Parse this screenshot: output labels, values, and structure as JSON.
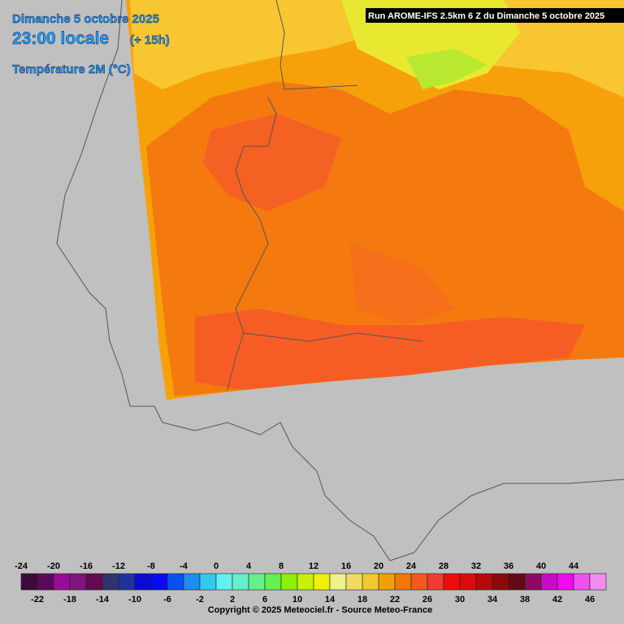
{
  "header": {
    "date": "Dimanche 5 octobre 2025",
    "time": "23:00 locale",
    "offset": "(+ 15h)",
    "parameter": "Température 2M (°C)",
    "run": "Run AROME-IFS 2.5km 6 Z du Dimanche 5 octobre 2025"
  },
  "legend": {
    "values": [
      -24,
      -22,
      -20,
      -18,
      -16,
      -14,
      -12,
      -10,
      -8,
      -6,
      -4,
      -2,
      0,
      2,
      4,
      6,
      8,
      10,
      12,
      14,
      16,
      18,
      20,
      22,
      24,
      26,
      28,
      30,
      32,
      34,
      36,
      38,
      40,
      42,
      44,
      46
    ],
    "colors": [
      "#3c0a3c",
      "#5a0a5a",
      "#9a0a9a",
      "#82147f",
      "#640a50",
      "#32326e",
      "#1e32a0",
      "#0a0ad2",
      "#0a0af0",
      "#0a50f0",
      "#1e8cf0",
      "#32c8f0",
      "#64f0f0",
      "#64f0c8",
      "#64f08c",
      "#64f050",
      "#8cf00a",
      "#c8f00a",
      "#f0f00a",
      "#f0f08c",
      "#f0dc64",
      "#f0c832",
      "#f0a00a",
      "#f0780a",
      "#f05a1e",
      "#f03c32",
      "#f00a0a",
      "#dc0a0a",
      "#b40a0a",
      "#8c0a0a",
      "#640a14",
      "#8c0a64",
      "#c80ac8",
      "#f00af0",
      "#f050f0",
      "#f08cf0"
    ]
  },
  "footer": {
    "copyright": "Copyright © 2025 Meteociel.fr - Source Meteo-France"
  }
}
